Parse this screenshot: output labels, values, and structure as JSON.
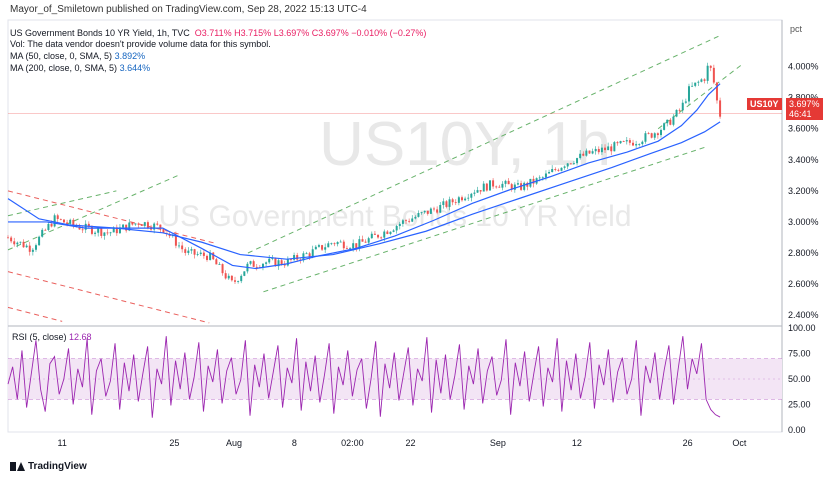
{
  "header": {
    "published": "Mayor_of_Smiletown published on TradingView.com, Sep 28, 2022 15:13 UTC-4",
    "title": "US Government Bonds 10 YR Yield, 1h, TVC",
    "open": "O3.711%",
    "high": "H3.715%",
    "low": "L3.697%",
    "close": "C3.697%",
    "change": "−0.010% (−0.27%)",
    "vol_note": "Vol: The data vendor doesn't provide volume data for this symbol.",
    "ma50_label": "MA (50, close, 0, SMA, 5)",
    "ma50_value": "3.892%",
    "ma200_label": "MA (200, close, 0, SMA, 5)",
    "ma200_value": "3.644%",
    "rsi_label": "RSI (5, close)",
    "rsi_value": "12.68"
  },
  "watermark": {
    "symbol": "US10Y, 1h",
    "name": "US Government Bonds 10 YR Yield"
  },
  "price_badge": {
    "symbol": "US10Y",
    "price": "3.697%",
    "countdown": "46:41"
  },
  "footer": {
    "brand": "TradingView"
  },
  "colors": {
    "up": "#26a69a",
    "down": "#ef5350",
    "ma": "#2962ff",
    "rsi": "#9c27b0",
    "rsi_band": "#f3e5f5",
    "channel_green": "#43a047",
    "channel_red": "#e53935"
  },
  "chart_data": {
    "type": "line",
    "ylabel": "pct",
    "price_axis": {
      "ylim": [
        2.33,
        4.3
      ],
      "ticks": [
        "4.000%",
        "3.800%",
        "3.600%",
        "3.400%",
        "3.200%",
        "3.000%",
        "2.800%",
        "2.600%",
        "2.400%"
      ]
    },
    "rsi_axis": {
      "ylim": [
        -2,
        102
      ],
      "ticks": [
        "100.00",
        "75.00",
        "50.00",
        "25.00",
        "0.00"
      ],
      "band": [
        30,
        70
      ]
    },
    "x_ticks": [
      {
        "label": "11",
        "t": 0.07
      },
      {
        "label": "25",
        "t": 0.215
      },
      {
        "label": "Aug",
        "t": 0.292
      },
      {
        "label": "8",
        "t": 0.37
      },
      {
        "label": "02:00",
        "t": 0.445
      },
      {
        "label": "22",
        "t": 0.52
      },
      {
        "label": "Sep",
        "t": 0.633
      },
      {
        "label": "12",
        "t": 0.735
      },
      {
        "label": "26",
        "t": 0.878
      },
      {
        "label": "Oct",
        "t": 0.945
      }
    ],
    "x_range": [
      0,
      1
    ],
    "price_series": {
      "name": "US10Y",
      "t": [
        0,
        0.03,
        0.06,
        0.09,
        0.13,
        0.17,
        0.2,
        0.23,
        0.26,
        0.29,
        0.31,
        0.33,
        0.36,
        0.39,
        0.42,
        0.45,
        0.48,
        0.51,
        0.54,
        0.57,
        0.6,
        0.63,
        0.66,
        0.69,
        0.72,
        0.75,
        0.78,
        0.81,
        0.83,
        0.85,
        0.87,
        0.88,
        0.9,
        0.905,
        0.91,
        0.915,
        0.92
      ],
      "values": [
        2.9,
        2.83,
        3.02,
        2.97,
        2.93,
        3.0,
        2.96,
        2.8,
        2.78,
        2.6,
        2.72,
        2.74,
        2.74,
        2.8,
        2.87,
        2.85,
        2.92,
        3.0,
        3.06,
        3.12,
        3.2,
        3.25,
        3.22,
        3.28,
        3.38,
        3.44,
        3.48,
        3.52,
        3.56,
        3.62,
        3.73,
        3.85,
        3.93,
        4.01,
        3.96,
        3.8,
        3.69
      ]
    },
    "ma50": {
      "name": "MA (50, close, 0, SMA, 5)",
      "t": [
        0,
        0.05,
        0.1,
        0.15,
        0.2,
        0.25,
        0.29,
        0.32,
        0.36,
        0.4,
        0.45,
        0.5,
        0.55,
        0.6,
        0.65,
        0.7,
        0.75,
        0.8,
        0.84,
        0.87,
        0.89,
        0.905,
        0.92
      ],
      "values": [
        3.0,
        3.0,
        2.96,
        2.96,
        2.96,
        2.83,
        2.72,
        2.7,
        2.73,
        2.78,
        2.83,
        2.91,
        3.01,
        3.12,
        3.21,
        3.29,
        3.38,
        3.45,
        3.52,
        3.62,
        3.72,
        3.82,
        3.89
      ]
    },
    "ma200": {
      "name": "MA (200, close, 0, SMA, 5)",
      "t": [
        0,
        0.04,
        0.08,
        0.14,
        0.2,
        0.25,
        0.3,
        0.36,
        0.42,
        0.48,
        0.54,
        0.6,
        0.66,
        0.72,
        0.78,
        0.83,
        0.87,
        0.9,
        0.92
      ],
      "values": [
        3.15,
        3.02,
        2.98,
        2.96,
        2.93,
        2.87,
        2.79,
        2.76,
        2.79,
        2.86,
        2.94,
        3.05,
        3.15,
        3.25,
        3.35,
        3.44,
        3.51,
        3.58,
        3.644
      ]
    },
    "rsi_series": {
      "name": "RSI (5, close)",
      "values": [
        45,
        62,
        30,
        78,
        22,
        55,
        88,
        40,
        18,
        65,
        72,
        35,
        50,
        80,
        25,
        60,
        42,
        90,
        15,
        58,
        70,
        33,
        48,
        85,
        20,
        66,
        38,
        74,
        28,
        56,
        82,
        12,
        60,
        45,
        92,
        24,
        68,
        40,
        76,
        30,
        52,
        86,
        18,
        63,
        47,
        79,
        26,
        58,
        71,
        35,
        49,
        88,
        14,
        64,
        42,
        75,
        31,
        57,
        83,
        22,
        61,
        46,
        90,
        19,
        67,
        38,
        73,
        27,
        54,
        85,
        16,
        62,
        44,
        78,
        33,
        59,
        70,
        21,
        50,
        87,
        13,
        65,
        41,
        76,
        29,
        55,
        81,
        24,
        60,
        48,
        91,
        17,
        69,
        36,
        74,
        30,
        53,
        84,
        20,
        63,
        45,
        80,
        26,
        58,
        72,
        34,
        49,
        89,
        15,
        66,
        43,
        77,
        28,
        56,
        82,
        23,
        61,
        47,
        90,
        18,
        68,
        39,
        75,
        31,
        52,
        86,
        21,
        64,
        44,
        79,
        27,
        57,
        71,
        35,
        50,
        88,
        14,
        63,
        46,
        76,
        30,
        59,
        83,
        25,
        60,
        92,
        40,
        70,
        55,
        85,
        30,
        20,
        15,
        12.68
      ]
    },
    "annotations": [
      {
        "kind": "channel",
        "color": "green",
        "note": "upper and lower dashed rising channel"
      },
      {
        "kind": "channel",
        "color": "red",
        "note": "dashed falling channel"
      },
      {
        "kind": "hline",
        "value": 3.697
      }
    ]
  }
}
